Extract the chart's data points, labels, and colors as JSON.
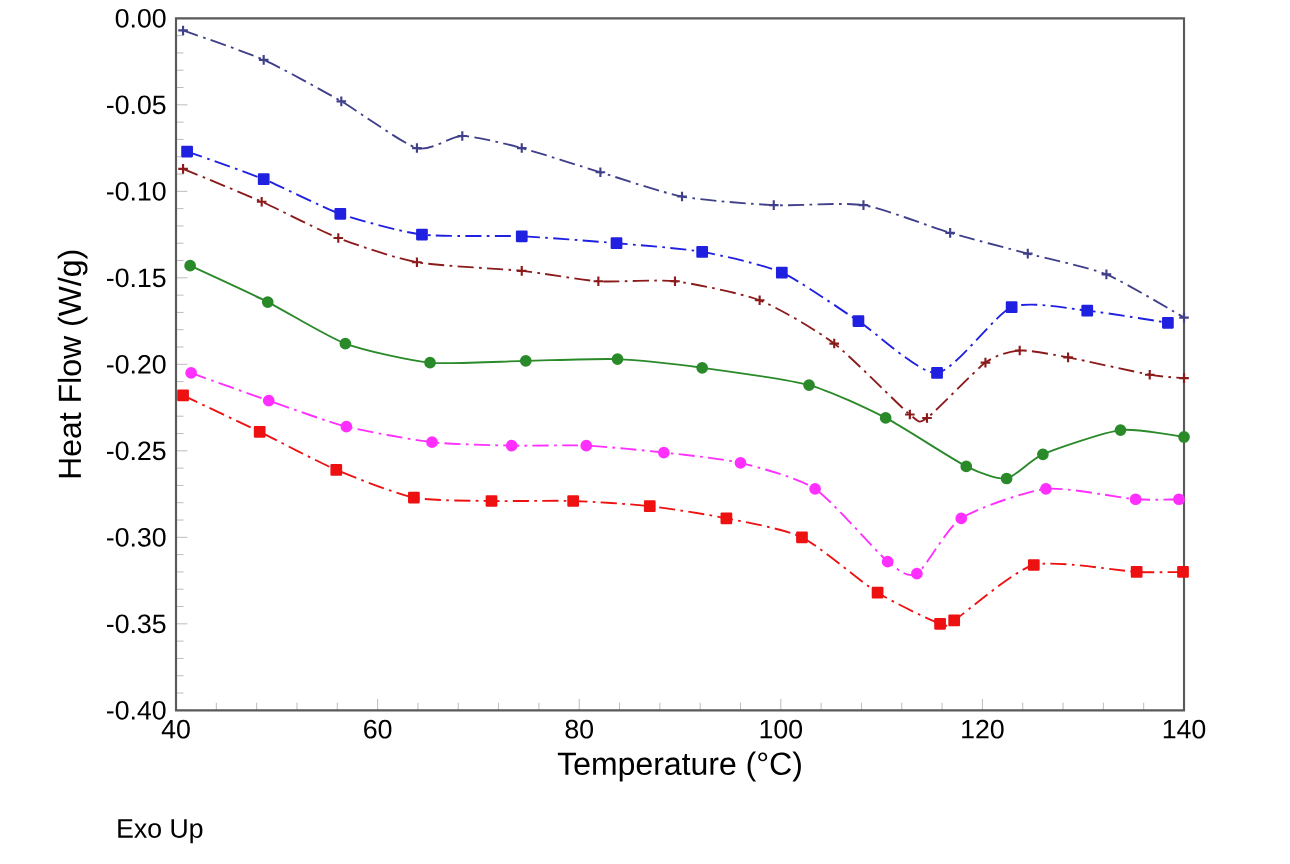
{
  "chart_data": {
    "type": "line",
    "xlabel": "Temperature (°C)",
    "ylabel": "Heat Flow (W/g)",
    "xlim": [
      40,
      140
    ],
    "ylim": [
      -0.4,
      0.0
    ],
    "xticks": [
      40,
      60,
      80,
      100,
      120,
      140
    ],
    "yticks": [
      {
        "value": -0.4,
        "label": "-0.40"
      },
      {
        "value": -0.35,
        "label": "-0.35"
      },
      {
        "value": -0.3,
        "label": "-0.30"
      },
      {
        "value": -0.25,
        "label": "-0.25"
      },
      {
        "value": -0.2,
        "label": "-0.20"
      },
      {
        "value": -0.15,
        "label": "-0.15"
      },
      {
        "value": -0.1,
        "label": "-0.10"
      },
      {
        "value": -0.05,
        "label": "-0.05"
      },
      {
        "value": 0.0,
        "label": "0.00"
      }
    ],
    "annotations": [
      "Exo Up"
    ],
    "series": [
      {
        "color": "#40408a",
        "marker": "cross",
        "line_style": "dashed",
        "x": [
          40.7,
          48.7,
          56.4,
          63.9,
          68.4,
          74.3,
          82.1,
          90.2,
          99.3,
          108.2,
          116.8,
          124.5,
          132.3,
          140
        ],
        "values": [
          -0.007,
          -0.024,
          -0.048,
          -0.075,
          -0.068,
          -0.075,
          -0.089,
          -0.103,
          -0.108,
          -0.108,
          -0.124,
          -0.136,
          -0.148,
          -0.173
        ]
      },
      {
        "color": "#2020e0",
        "marker": "square",
        "line_style": "dashed",
        "x": [
          41.1,
          48.7,
          56.3,
          64.4,
          74.3,
          83.7,
          92.2,
          100.1,
          107.7,
          115.5,
          122.9,
          130.4,
          138.4
        ],
        "values": [
          -0.077,
          -0.093,
          -0.113,
          -0.125,
          -0.126,
          -0.13,
          -0.135,
          -0.147,
          -0.175,
          -0.205,
          -0.167,
          -0.169,
          -0.176
        ]
      },
      {
        "color": "#8b1a1a",
        "marker": "cross",
        "line_style": "dashed",
        "x": [
          40.7,
          48.5,
          56.1,
          63.9,
          74.3,
          81.9,
          89.5,
          97.9,
          105.3,
          112.8,
          114.5,
          120.3,
          123.7,
          128.5,
          136.6,
          140
        ],
        "values": [
          -0.087,
          -0.106,
          -0.127,
          -0.141,
          -0.146,
          -0.152,
          -0.152,
          -0.163,
          -0.188,
          -0.229,
          -0.231,
          -0.199,
          -0.192,
          -0.196,
          -0.206,
          -0.208
        ]
      },
      {
        "color": "#2a8a2a",
        "marker": "circle",
        "line_style": "solid",
        "x": [
          41.4,
          49.1,
          56.8,
          65.2,
          74.7,
          83.8,
          92.2,
          102.8,
          110.4,
          118.4,
          122.4,
          126.0,
          133.7,
          140
        ],
        "values": [
          -0.143,
          -0.164,
          -0.188,
          -0.199,
          -0.198,
          -0.197,
          -0.202,
          -0.212,
          -0.231,
          -0.259,
          -0.266,
          -0.252,
          -0.238,
          -0.242
        ]
      },
      {
        "color": "#ff30ff",
        "marker": "circle",
        "line_style": "dashed",
        "x": [
          41.5,
          49.2,
          56.9,
          65.4,
          73.3,
          80.7,
          88.4,
          96.0,
          103.4,
          110.6,
          113.5,
          117.9,
          126.3,
          135.2,
          139.5
        ],
        "values": [
          -0.205,
          -0.221,
          -0.236,
          -0.245,
          -0.247,
          -0.247,
          -0.251,
          -0.257,
          -0.272,
          -0.314,
          -0.321,
          -0.289,
          -0.272,
          -0.278,
          -0.278
        ]
      },
      {
        "color": "#ee1111",
        "marker": "square",
        "line_style": "dashed",
        "x": [
          40.7,
          48.3,
          55.9,
          63.6,
          71.3,
          79.4,
          87.0,
          94.6,
          102.1,
          109.6,
          115.8,
          117.2,
          125.1,
          135.3,
          139.9
        ],
        "values": [
          -0.218,
          -0.239,
          -0.261,
          -0.277,
          -0.279,
          -0.279,
          -0.282,
          -0.289,
          -0.3,
          -0.332,
          -0.35,
          -0.348,
          -0.316,
          -0.32,
          -0.32
        ]
      }
    ]
  }
}
